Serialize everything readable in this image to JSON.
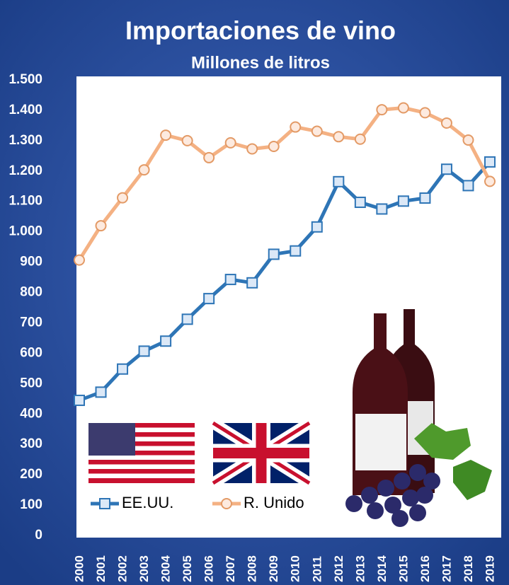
{
  "chart_data": {
    "type": "line",
    "title": "Importaciones de vino",
    "subtitle": "Millones de litros",
    "categories": [
      "2000",
      "2001",
      "2002",
      "2003",
      "2004",
      "2005",
      "2006",
      "2007",
      "2008",
      "2009",
      "2010",
      "2011",
      "2012",
      "2013",
      "2014",
      "2015",
      "2016",
      "2017",
      "2018",
      "2019"
    ],
    "series": [
      {
        "name": "EE.UU.",
        "color": "#2e75b6",
        "values": [
          445,
          472,
          548,
          607,
          640,
          712,
          780,
          843,
          832,
          926,
          937,
          1016,
          1165,
          1097,
          1075,
          1101,
          1111,
          1206,
          1152,
          1230
        ]
      },
      {
        "name": "R. Unido",
        "color": "#f4b183",
        "values": [
          907,
          1020,
          1112,
          1204,
          1318,
          1300,
          1244,
          1293,
          1273,
          1281,
          1345,
          1331,
          1313,
          1305,
          1402,
          1408,
          1392,
          1358,
          1302,
          1166
        ]
      }
    ],
    "ylim": [
      0,
      1500
    ],
    "yticks": [
      0,
      100,
      200,
      300,
      400,
      500,
      600,
      700,
      800,
      900,
      {
        "value": 1000,
        "label": "1.000"
      },
      {
        "value": 1100,
        "label": "1.100"
      },
      {
        "value": 1200,
        "label": "1.200"
      },
      {
        "value": 1300,
        "label": "1.300"
      },
      {
        "value": 1400,
        "label": "1.400"
      },
      {
        "value": 1500,
        "label": "1.500"
      }
    ],
    "grid": false
  }
}
